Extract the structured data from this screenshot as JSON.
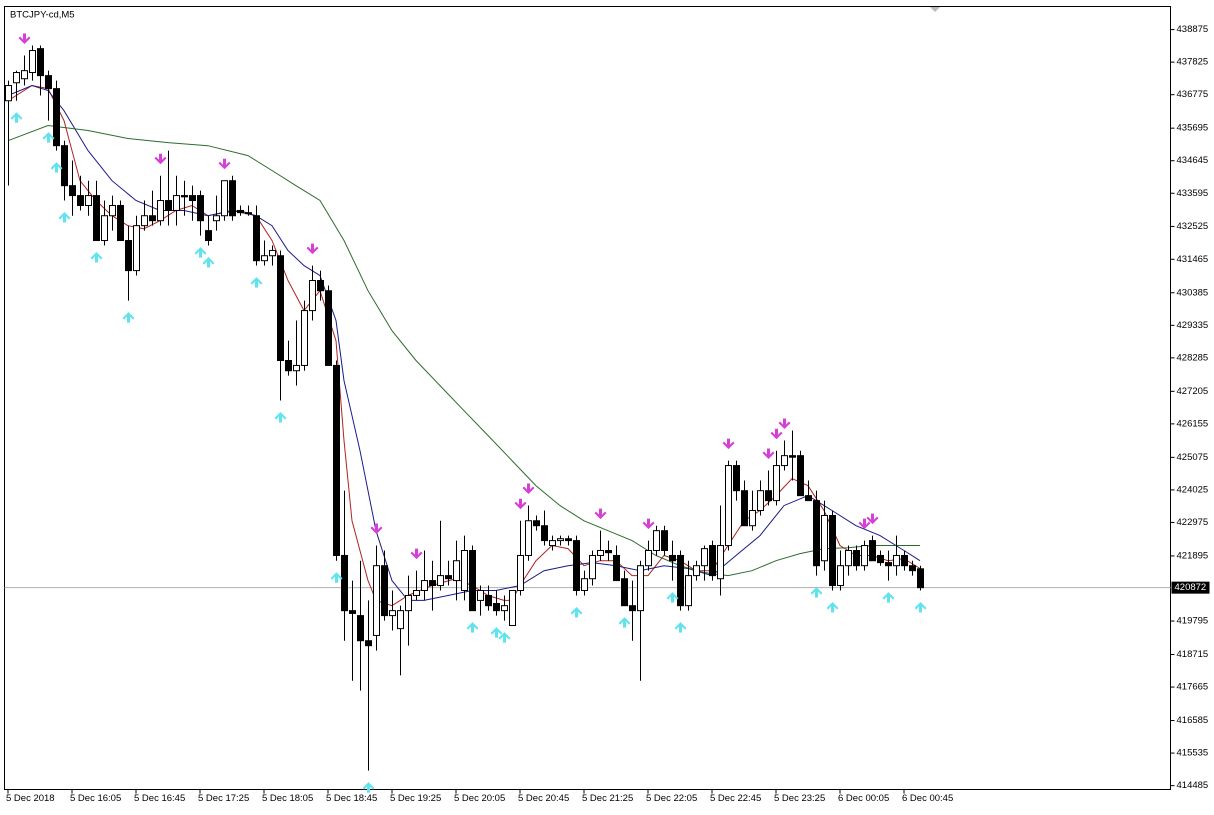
{
  "chart_data": {
    "type": "candlestick",
    "title": "BTCJPY-cd,M5",
    "categories": [
      "5 Dec 2018",
      null,
      null,
      null,
      null,
      null,
      null,
      null,
      "5 Dec 16:05",
      null,
      null,
      null,
      null,
      null,
      null,
      null,
      "5 Dec 16:45",
      null,
      null,
      null,
      null,
      null,
      null,
      null,
      "5 Dec 17:25",
      null,
      null,
      null,
      null,
      null,
      null,
      null,
      "5 Dec 18:05",
      null,
      null,
      null,
      null,
      null,
      null,
      null,
      "5 Dec 18:45",
      null,
      null,
      null,
      null,
      null,
      null,
      null,
      "5 Dec 19:25",
      null,
      null,
      null,
      null,
      null,
      null,
      null,
      "5 Dec 20:05",
      null,
      null,
      null,
      null,
      null,
      null,
      null,
      "5 Dec 20:45",
      null,
      null,
      null,
      null,
      null,
      null,
      null,
      "5 Dec 21:25",
      null,
      null,
      null,
      null,
      null,
      null,
      null,
      "5 Dec 22:05",
      null,
      null,
      null,
      null,
      null,
      null,
      null,
      "5 Dec 22:45",
      null,
      null,
      null,
      null,
      null,
      null,
      null,
      "5 Dec 23:25",
      null,
      null,
      null,
      null,
      null,
      null,
      null,
      "6 Dec 00:05",
      null,
      null,
      null,
      null,
      null,
      null,
      null,
      "6 Dec 00:45",
      null,
      null
    ],
    "open": [
      436580,
      437160,
      437290,
      437490,
      438260,
      437390,
      436970,
      435130,
      433840,
      433520,
      433200,
      433520,
      432070,
      432870,
      433200,
      432070,
      431100,
      432550,
      432870,
      432710,
      433360,
      433040,
      433520,
      433520,
      433520,
      432390,
      432710,
      432870,
      434000,
      433040,
      432970,
      432870,
      431420,
      431580,
      431580,
      428200,
      427870,
      428040,
      429810,
      430780,
      430450,
      428040,
      421910,
      420130,
      419970,
      419160,
      419330,
      421580,
      419970,
      419550,
      420130,
      420620,
      420780,
      421100,
      420940,
      421260,
      421100,
      420780,
      422070,
      420460,
      420620,
      420360,
      420130,
      419650,
      420780,
      421910,
      423030,
      422870,
      422230,
      422390,
      422450,
      422390,
      420780,
      421160,
      421910,
      422070,
      421910,
      421160,
      420290,
      420130,
      421580,
      422070,
      422710,
      421910,
      421910,
      420290,
      421260,
      421580,
      422230,
      421160,
      422230,
      424810,
      424000,
      422870,
      423360,
      424000,
      423680,
      424810,
      425130,
      425130,
      423840,
      423680,
      421740,
      423200,
      420940,
      421580,
      422070,
      421580,
      422390,
      421910,
      421680,
      421580,
      421910,
      421580,
      421480
    ],
    "high": [
      437230,
      437550,
      438040,
      438360,
      438360,
      437550,
      437230,
      435290,
      434650,
      434160,
      434000,
      434000,
      433360,
      433520,
      433360,
      432550,
      432870,
      433360,
      433680,
      434160,
      434970,
      434160,
      434000,
      433840,
      433680,
      432870,
      433520,
      434000,
      434160,
      433200,
      433200,
      433200,
      432070,
      431910,
      431750,
      428840,
      429490,
      430130,
      431260,
      431100,
      430620,
      428200,
      424000,
      421100,
      421740,
      420460,
      422230,
      422070,
      420780,
      420290,
      421260,
      421420,
      422070,
      421740,
      423030,
      421740,
      422390,
      422550,
      422230,
      420940,
      420940,
      420780,
      420620,
      420780,
      423030,
      423520,
      423200,
      423360,
      422550,
      422550,
      422550,
      422550,
      421420,
      422070,
      422710,
      422390,
      422230,
      421420,
      421100,
      421740,
      422390,
      422870,
      422870,
      422390,
      422070,
      421740,
      421740,
      422230,
      422390,
      423520,
      424970,
      424970,
      424330,
      424000,
      424330,
      424650,
      425290,
      425620,
      425940,
      425290,
      424330,
      424000,
      423680,
      423360,
      422070,
      422230,
      422230,
      422390,
      422550,
      422070,
      422070,
      422550,
      422070,
      421740,
      421580
    ],
    "low": [
      433840,
      436580,
      437070,
      437230,
      436750,
      435940,
      434970,
      433360,
      432870,
      433040,
      432870,
      432070,
      431910,
      432390,
      432070,
      430130,
      430940,
      432390,
      432550,
      432550,
      432550,
      432550,
      432870,
      432710,
      432230,
      431910,
      432390,
      432710,
      432710,
      432870,
      432870,
      431260,
      431260,
      431260,
      426910,
      427710,
      427390,
      427870,
      429490,
      430130,
      428040,
      421740,
      419160,
      417870,
      417550,
      414970,
      418840,
      419810,
      419490,
      418040,
      419000,
      420460,
      420460,
      420130,
      420780,
      420940,
      420460,
      420460,
      420130,
      419970,
      420130,
      419970,
      419810,
      419650,
      420620,
      421740,
      422710,
      422230,
      422070,
      422230,
      422230,
      420620,
      420620,
      420940,
      421740,
      421740,
      421100,
      420290,
      419160,
      417870,
      421420,
      421910,
      421910,
      421100,
      420130,
      420130,
      421100,
      421100,
      421100,
      420620,
      422070,
      423680,
      422870,
      422710,
      423200,
      423520,
      423520,
      424650,
      424330,
      423840,
      423680,
      421260,
      421420,
      420780,
      420780,
      421260,
      421420,
      421420,
      421740,
      421580,
      421100,
      421260,
      421420,
      421260,
      420780
    ],
    "close": [
      437070,
      437490,
      437550,
      438200,
      437390,
      436970,
      435130,
      433840,
      433520,
      433200,
      433520,
      432070,
      432870,
      433200,
      432070,
      431100,
      432550,
      432870,
      432710,
      433360,
      433040,
      433520,
      433480,
      433360,
      432710,
      432070,
      432870,
      434000,
      432870,
      432970,
      432950,
      431420,
      431580,
      431750,
      428200,
      427870,
      428040,
      429810,
      430780,
      430450,
      428040,
      421910,
      420130,
      420040,
      419160,
      419000,
      421580,
      419970,
      420130,
      420130,
      420620,
      420780,
      421100,
      420940,
      421260,
      421160,
      421740,
      422070,
      420130,
      420780,
      420290,
      420130,
      420290,
      420780,
      421910,
      423030,
      422870,
      422390,
      422390,
      422450,
      422390,
      420780,
      421160,
      421910,
      422070,
      422000,
      421100,
      420290,
      420130,
      421580,
      422070,
      422710,
      422070,
      421740,
      420290,
      421260,
      421580,
      422130,
      421260,
      422230,
      424810,
      424000,
      422870,
      423360,
      424000,
      423680,
      424810,
      425130,
      425080,
      423840,
      423680,
      421580,
      423200,
      420940,
      421580,
      422070,
      421580,
      422230,
      421740,
      421680,
      421580,
      421910,
      421580,
      421420,
      420872
    ],
    "up_color": "#ffffff",
    "down_color": "#000000",
    "indicators": [
      {
        "color": "#b22222",
        "x": [
          0,
          3,
          5,
          7,
          9,
          11,
          13,
          15,
          17,
          19,
          21,
          23,
          25,
          27,
          29,
          31,
          33,
          35,
          37,
          39,
          41,
          42,
          43,
          45,
          46,
          48,
          50,
          53,
          56,
          58,
          60,
          62,
          63,
          64,
          66,
          68,
          70,
          72,
          74,
          76,
          78,
          80,
          82,
          84,
          86,
          88,
          90,
          92,
          94,
          96,
          98,
          100,
          102,
          104,
          106,
          108,
          110,
          112,
          114
        ],
        "values": [
          436580,
          437070,
          436970,
          435940,
          434000,
          433360,
          432870,
          432550,
          432450,
          432710,
          433040,
          433200,
          432870,
          432970,
          433040,
          432870,
          432070,
          430780,
          429810,
          430450,
          428840,
          425620,
          423030,
          421100,
          420460,
          420290,
          420620,
          420940,
          421160,
          420940,
          420620,
          420460,
          420460,
          420940,
          421740,
          422230,
          422130,
          421580,
          421740,
          421740,
          421260,
          421260,
          421910,
          421740,
          421420,
          421420,
          422230,
          423030,
          423360,
          423840,
          424390,
          424160,
          423360,
          422230,
          421910,
          421910,
          421740,
          421810,
          421490
        ]
      },
      {
        "color": "#1a1a8c",
        "x": [
          0,
          3,
          5,
          7,
          10,
          13,
          16,
          19,
          22,
          25,
          28,
          31,
          33,
          35,
          37,
          39,
          41,
          42,
          44,
          46,
          48,
          50,
          52,
          55,
          58,
          61,
          64,
          67,
          70,
          73,
          76,
          79,
          82,
          85,
          88,
          91,
          94,
          97,
          100,
          103,
          106,
          109,
          112,
          114
        ],
        "values": [
          436750,
          437070,
          436910,
          436260,
          434970,
          434000,
          433360,
          433040,
          433040,
          432870,
          433040,
          432870,
          432550,
          431750,
          431260,
          430940,
          429490,
          427550,
          425290,
          422710,
          421100,
          420460,
          420460,
          420620,
          420780,
          420780,
          420940,
          421420,
          421580,
          421680,
          421580,
          421420,
          421580,
          421490,
          421260,
          421910,
          422550,
          423520,
          423840,
          423360,
          422870,
          422550,
          422070,
          421740
        ]
      },
      {
        "color": "#2e6b2e",
        "x": [
          0,
          5,
          10,
          15,
          20,
          25,
          30,
          33,
          36,
          39,
          42,
          45,
          48,
          51,
          54,
          57,
          60,
          63,
          66,
          69,
          72,
          75,
          78,
          81,
          84,
          87,
          90,
          93,
          96,
          99,
          102,
          105,
          108,
          111,
          114
        ],
        "values": [
          435290,
          435780,
          435620,
          435360,
          435230,
          435130,
          434810,
          434330,
          433840,
          433360,
          432070,
          430450,
          429160,
          428200,
          427390,
          426580,
          425780,
          424970,
          424160,
          423520,
          423030,
          422710,
          422390,
          421910,
          421580,
          421360,
          421260,
          421420,
          421740,
          421970,
          422130,
          422160,
          422230,
          422230,
          422230
        ]
      }
    ],
    "arrows_down": {
      "color": "#d63fd6",
      "indices": [
        2,
        19,
        27,
        38,
        46,
        51,
        64,
        65,
        74,
        80,
        90,
        95,
        96,
        97,
        107,
        108
      ]
    },
    "arrows_up": {
      "color": "#5fe3ee",
      "indices": [
        1,
        5,
        6,
        7,
        11,
        15,
        24,
        25,
        31,
        34,
        41,
        45,
        58,
        61,
        62,
        71,
        77,
        83,
        84,
        101,
        103,
        110,
        114
      ]
    },
    "current_price": 420872,
    "ylim": [
      414360,
      439620
    ],
    "yticks": [
      438875,
      437825,
      436775,
      435695,
      434645,
      433595,
      432525,
      431465,
      430385,
      429335,
      428285,
      427205,
      426155,
      425075,
      424025,
      422975,
      421895,
      419795,
      418715,
      417665,
      416585,
      415535,
      414485
    ]
  }
}
